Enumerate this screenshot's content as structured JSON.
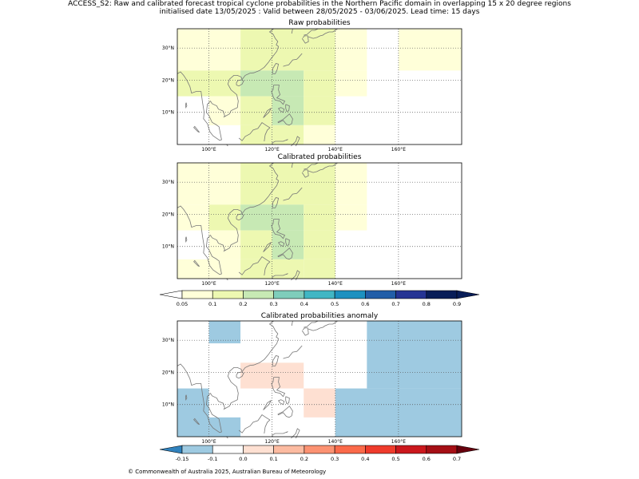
{
  "header": {
    "title_line1": "ACCESS_S2: Raw and calibrated forecast tropical cyclone probabilities in the Northern Pacific domain in overlapping 15 x 20 degree regions",
    "title_line2": "initialised date 13/05/2025 :  Valid between 28/05/2025 - 03/06/2025. Lead time: 15 days"
  },
  "footer": {
    "copyright": "© Commonwealth of Australia 2025, Australian Bureau of Meteorology"
  },
  "chart_data": [
    {
      "type": "heatmap",
      "title": "Raw probabilities",
      "xlim": [
        90,
        180
      ],
      "ylim": [
        0,
        36
      ],
      "x_ticks": [
        {
          "v": 100,
          "label": "100°E"
        },
        {
          "v": 120,
          "label": "120°E"
        },
        {
          "v": 140,
          "label": "140°E"
        },
        {
          "v": 160,
          "label": "160°E"
        }
      ],
      "y_ticks": [
        {
          "v": 10,
          "label": "10°N"
        },
        {
          "v": 20,
          "label": "20°N"
        },
        {
          "v": 30,
          "label": "30°N"
        }
      ],
      "grid": true,
      "cells": [
        {
          "x0": 90,
          "x1": 110,
          "y0": 23,
          "y1": 36,
          "value": 0.07
        },
        {
          "x0": 110,
          "x1": 140,
          "y0": 23,
          "y1": 36,
          "value": 0.12
        },
        {
          "x0": 140,
          "x1": 150,
          "y0": 23,
          "y1": 36,
          "value": 0.07
        },
        {
          "x0": 160,
          "x1": 180,
          "y0": 23,
          "y1": 36,
          "value": 0.07
        },
        {
          "x0": 90,
          "x1": 100,
          "y0": 15,
          "y1": 23,
          "value": 0.12
        },
        {
          "x0": 100,
          "x1": 110,
          "y0": 15,
          "y1": 23,
          "value": 0.12
        },
        {
          "x0": 110,
          "x1": 130,
          "y0": 15,
          "y1": 23,
          "value": 0.22
        },
        {
          "x0": 130,
          "x1": 140,
          "y0": 15,
          "y1": 23,
          "value": 0.12
        },
        {
          "x0": 140,
          "x1": 150,
          "y0": 15,
          "y1": 23,
          "value": 0.07
        },
        {
          "x0": 100,
          "x1": 110,
          "y0": 6,
          "y1": 15,
          "value": 0.07
        },
        {
          "x0": 110,
          "x1": 120,
          "y0": 6,
          "y1": 15,
          "value": 0.12
        },
        {
          "x0": 120,
          "x1": 130,
          "y0": 6,
          "y1": 15,
          "value": 0.25
        },
        {
          "x0": 130,
          "x1": 140,
          "y0": 6,
          "y1": 15,
          "value": 0.12
        },
        {
          "x0": 110,
          "x1": 120,
          "y0": 0,
          "y1": 6,
          "value": 0.12
        },
        {
          "x0": 120,
          "x1": 130,
          "y0": 0,
          "y1": 6,
          "value": 0.12
        },
        {
          "x0": 130,
          "x1": 140,
          "y0": 0,
          "y1": 6,
          "value": 0.07
        }
      ]
    },
    {
      "type": "heatmap",
      "title": "Calibrated probabilities",
      "xlim": [
        90,
        180
      ],
      "ylim": [
        0,
        36
      ],
      "x_ticks": [
        {
          "v": 100,
          "label": "100°E"
        },
        {
          "v": 120,
          "label": "120°E"
        },
        {
          "v": 140,
          "label": "140°E"
        },
        {
          "v": 160,
          "label": "160°E"
        }
      ],
      "y_ticks": [
        {
          "v": 10,
          "label": "10°N"
        },
        {
          "v": 20,
          "label": "20°N"
        },
        {
          "v": 30,
          "label": "30°N"
        }
      ],
      "grid": true,
      "cells": [
        {
          "x0": 90,
          "x1": 110,
          "y0": 23,
          "y1": 36,
          "value": 0.07
        },
        {
          "x0": 110,
          "x1": 140,
          "y0": 23,
          "y1": 36,
          "value": 0.12
        },
        {
          "x0": 140,
          "x1": 150,
          "y0": 23,
          "y1": 36,
          "value": 0.07
        },
        {
          "x0": 90,
          "x1": 100,
          "y0": 15,
          "y1": 23,
          "value": 0.07
        },
        {
          "x0": 100,
          "x1": 110,
          "y0": 15,
          "y1": 23,
          "value": 0.12
        },
        {
          "x0": 110,
          "x1": 130,
          "y0": 15,
          "y1": 23,
          "value": 0.22
        },
        {
          "x0": 130,
          "x1": 140,
          "y0": 15,
          "y1": 23,
          "value": 0.12
        },
        {
          "x0": 140,
          "x1": 150,
          "y0": 15,
          "y1": 23,
          "value": 0.07
        },
        {
          "x0": 100,
          "x1": 110,
          "y0": 6,
          "y1": 15,
          "value": 0.07
        },
        {
          "x0": 110,
          "x1": 120,
          "y0": 6,
          "y1": 15,
          "value": 0.12
        },
        {
          "x0": 120,
          "x1": 130,
          "y0": 6,
          "y1": 15,
          "value": 0.22
        },
        {
          "x0": 130,
          "x1": 140,
          "y0": 6,
          "y1": 15,
          "value": 0.12
        },
        {
          "x0": 90,
          "x1": 110,
          "y0": 0,
          "y1": 6,
          "value": 0.07
        },
        {
          "x0": 110,
          "x1": 130,
          "y0": 0,
          "y1": 6,
          "value": 0.12
        },
        {
          "x0": 130,
          "x1": 140,
          "y0": 0,
          "y1": 6,
          "value": 0.12
        }
      ]
    },
    {
      "type": "heatmap",
      "title": "Calibrated probabilities anomaly",
      "xlim": [
        90,
        180
      ],
      "ylim": [
        0,
        36
      ],
      "x_ticks": [
        {
          "v": 100,
          "label": "100°E"
        },
        {
          "v": 120,
          "label": "120°E"
        },
        {
          "v": 140,
          "label": "140°E"
        },
        {
          "v": 160,
          "label": "160°E"
        }
      ],
      "y_ticks": [
        {
          "v": 10,
          "label": "10°N"
        },
        {
          "v": 20,
          "label": "20°N"
        },
        {
          "v": 30,
          "label": "30°N"
        }
      ],
      "grid": true,
      "cells": [
        {
          "x0": 90,
          "x1": 100,
          "y0": 29,
          "y1": 36,
          "value": -0.07
        },
        {
          "x0": 100,
          "x1": 110,
          "y0": 29,
          "y1": 36,
          "value": -0.12
        },
        {
          "x0": 110,
          "x1": 120,
          "y0": 29,
          "y1": 36,
          "value": -0.07
        },
        {
          "x0": 90,
          "x1": 110,
          "y0": 15,
          "y1": 29,
          "value": -0.07
        },
        {
          "x0": 100,
          "x1": 110,
          "y0": 6,
          "y1": 15,
          "value": -0.07
        },
        {
          "x0": 90,
          "x1": 100,
          "y0": 0,
          "y1": 15,
          "value": -0.12
        },
        {
          "x0": 100,
          "x1": 110,
          "y0": 0,
          "y1": 6,
          "value": -0.12
        },
        {
          "x0": 110,
          "x1": 130,
          "y0": 15,
          "y1": 23,
          "value": 0.05
        },
        {
          "x0": 130,
          "x1": 140,
          "y0": 6,
          "y1": 15,
          "value": 0.05
        },
        {
          "x0": 140,
          "x1": 150,
          "y0": 15,
          "y1": 36,
          "value": -0.07
        },
        {
          "x0": 150,
          "x1": 180,
          "y0": 15,
          "y1": 36,
          "value": -0.12
        },
        {
          "x0": 140,
          "x1": 180,
          "y0": 0,
          "y1": 15,
          "value": -0.12
        }
      ]
    }
  ],
  "colorbars": {
    "probability": {
      "ticks": [
        "0.05",
        "0.1",
        "0.2",
        "0.3",
        "0.4",
        "0.5",
        "0.6",
        "0.7",
        "0.8",
        "0.9"
      ],
      "colors": [
        "#ffffd9",
        "#edf8b1",
        "#c7e9b4",
        "#7fcdbb",
        "#41b6c4",
        "#1d91c0",
        "#225ea8",
        "#253494",
        "#081d58"
      ],
      "under_color": "#ffffff",
      "over_color": "#081d58"
    },
    "anomaly": {
      "ticks": [
        "-0.15",
        "-0.1",
        "0.0",
        "0.1",
        "0.2",
        "0.3",
        "0.4",
        "0.5",
        "0.6",
        "0.7"
      ],
      "colors": [
        "#9ecae1",
        "#ffffff",
        "#fee0d2",
        "#fcbba1",
        "#fc9272",
        "#fb6a4a",
        "#ef3b2c",
        "#cb181d",
        "#a50f15"
      ],
      "under_color": "#3182bd",
      "over_color": "#67000d"
    }
  }
}
